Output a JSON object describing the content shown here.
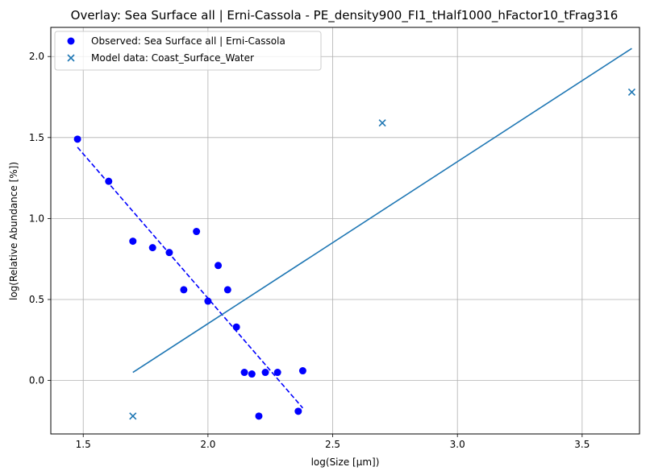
{
  "chart_data": {
    "type": "scatter",
    "title": "Overlay: Sea Surface all | Erni-Cassola - PE_density900_FI1_tHalf1000_hFactor10_tFrag316",
    "xlabel": "log(Size [µm])",
    "ylabel": "log(Relative Abundance [%])",
    "xlim": [
      1.37,
      3.73
    ],
    "ylim": [
      -0.33,
      2.18
    ],
    "xticks": [
      1.5,
      2.0,
      2.5,
      3.0,
      3.5
    ],
    "yticks": [
      0.0,
      0.5,
      1.0,
      1.5,
      2.0
    ],
    "xtick_labels": [
      "1.5",
      "2.0",
      "2.5",
      "3.0",
      "3.5"
    ],
    "ytick_labels": [
      "0.0",
      "0.5",
      "1.0",
      "1.5",
      "2.0"
    ],
    "grid": true,
    "legend_position": "top-left",
    "series": [
      {
        "name": "Observed: Sea Surface all | Erni-Cassola",
        "kind": "scatter",
        "marker": "circle",
        "color": "#0000ff",
        "x": [
          1.477,
          1.602,
          1.699,
          1.778,
          1.845,
          1.903,
          1.954,
          2.0,
          2.041,
          2.079,
          2.114,
          2.146,
          2.176,
          2.204,
          2.23,
          2.279,
          2.362,
          2.38
        ],
        "y": [
          1.49,
          1.23,
          0.86,
          0.82,
          0.79,
          0.56,
          0.92,
          0.49,
          0.71,
          0.56,
          0.33,
          0.05,
          0.04,
          -0.22,
          0.05,
          0.05,
          -0.19,
          0.06
        ]
      },
      {
        "name": "Model data: Coast_Surface_Water",
        "kind": "scatter",
        "marker": "x",
        "color": "#1f77b4",
        "x": [
          1.699,
          2.699,
          3.699
        ],
        "y": [
          -0.22,
          1.59,
          1.78
        ]
      },
      {
        "kind": "line",
        "style": "dashed",
        "color": "#0000ff",
        "x": [
          1.477,
          2.38
        ],
        "y": [
          1.44,
          -0.17
        ]
      },
      {
        "kind": "line",
        "style": "solid",
        "color": "#1f77b4",
        "x": [
          1.699,
          3.699
        ],
        "y": [
          0.05,
          2.05
        ]
      }
    ]
  }
}
